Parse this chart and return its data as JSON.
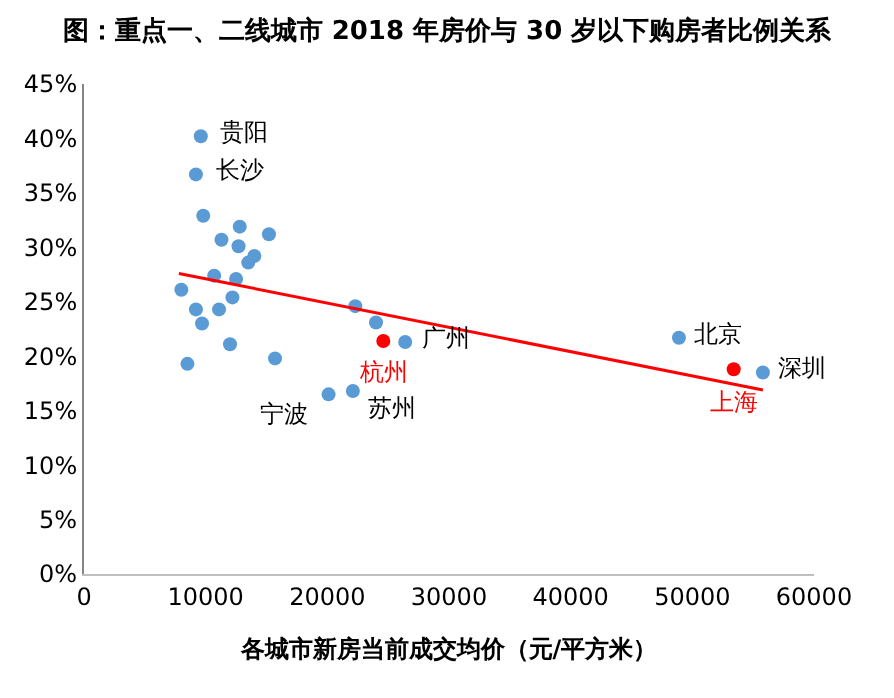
{
  "chart_data": {
    "type": "scatter",
    "title": "图：重点一、二线城市 2018 年房价与 30 岁以下购房者比例关系",
    "xlabel": "各城市新房当前成交均价（元/平方米）",
    "xlim": [
      0,
      60000
    ],
    "xticks": [
      0,
      10000,
      20000,
      30000,
      40000,
      50000,
      60000
    ],
    "ylim": [
      0,
      45
    ],
    "yticks": [
      {
        "value": 0,
        "label": "0%"
      },
      {
        "value": 5,
        "label": "5%"
      },
      {
        "value": 10,
        "label": "10%"
      },
      {
        "value": 15,
        "label": "15%"
      },
      {
        "value": 20,
        "label": "20%"
      },
      {
        "value": 25,
        "label": "25%"
      },
      {
        "value": 30,
        "label": "30%"
      },
      {
        "value": 35,
        "label": "35%"
      },
      {
        "value": 40,
        "label": "40%"
      },
      {
        "value": 45,
        "label": "45%"
      }
    ],
    "marker": "circle",
    "series": [
      {
        "color": "#5b9bd5",
        "x": [
          9600,
          9200,
          9800,
          11300,
          12800,
          12700,
          15200,
          14000,
          13500,
          10700,
          12500,
          8000,
          12200,
          9200,
          11100,
          9700,
          12000,
          8500,
          15700,
          20100,
          22300,
          24000,
          26400,
          22100,
          48900,
          55800
        ],
        "values": [
          40.2,
          36.7,
          32.9,
          30.7,
          31.9,
          30.1,
          31.2,
          29.2,
          28.6,
          27.4,
          27.1,
          26.1,
          25.4,
          24.3,
          24.3,
          23.0,
          21.1,
          19.3,
          19.8,
          16.5,
          24.6,
          23.1,
          21.3,
          16.8,
          21.7,
          18.5
        ]
      },
      {
        "color": "#ff0000",
        "x": [
          24600,
          53400
        ],
        "values": [
          21.4,
          18.8
        ]
      },
      {
        "type": "line",
        "color": "#ff0000",
        "marker": "none",
        "x": [
          7800,
          55800
        ],
        "values": [
          27.6,
          16.9
        ]
      }
    ],
    "annotations": [
      {
        "text": "贵阳",
        "x": 9600,
        "y": 40.2
      },
      {
        "text": "长沙",
        "x": 9200,
        "y": 36.7
      },
      {
        "text": "宁波",
        "x": 20100,
        "y": 16.5
      },
      {
        "text": "苏州",
        "x": 22100,
        "y": 16.8
      },
      {
        "text": "杭州",
        "x": 24600,
        "y": 21.4
      },
      {
        "text": "广州",
        "x": 26400,
        "y": 21.3
      },
      {
        "text": "北京",
        "x": 48900,
        "y": 21.7
      },
      {
        "text": "上海",
        "x": 53400,
        "y": 18.8
      },
      {
        "text": "深圳",
        "x": 55800,
        "y": 18.5
      }
    ]
  }
}
